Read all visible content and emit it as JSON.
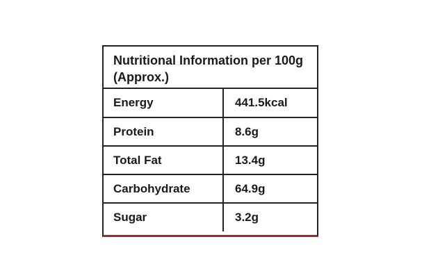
{
  "header": {
    "title": "Nutritional Information per 100g (Approx.)"
  },
  "table": {
    "rows": [
      [
        "Energy",
        "441.5kcal"
      ],
      [
        "Protein",
        "8.6g"
      ],
      [
        "Total Fat",
        "13.4g"
      ],
      [
        "Carbohydrate",
        "64.9g"
      ],
      [
        "Sugar",
        "3.2g"
      ]
    ]
  }
}
